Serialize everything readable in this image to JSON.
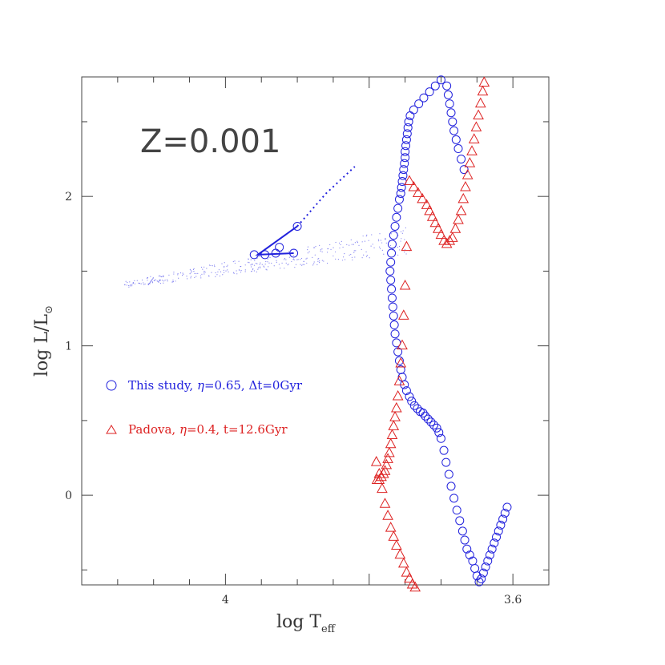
{
  "chart_data": {
    "type": "scatter",
    "title": "",
    "xlabel": "log T",
    "xlabel_sub": "eff",
    "ylabel": "log L/L",
    "ylabel_sub": "⊙",
    "xlim": [
      4.2,
      3.55
    ],
    "ylim": [
      -0.6,
      2.8
    ],
    "x_inverted": true,
    "x_ticks": [
      {
        "value": 4.0,
        "label": "4"
      },
      {
        "value": 3.6,
        "label": "3.6"
      }
    ],
    "y_ticks": [
      {
        "value": 0,
        "label": "0"
      },
      {
        "value": 1,
        "label": "1"
      },
      {
        "value": 2,
        "label": "2"
      }
    ],
    "annotation": "Z=0.001",
    "grid": false,
    "legend_placement": "left",
    "series": [
      {
        "name": "This study, η=0.65, Δt=0Gyr",
        "color": "#2222dd",
        "marker": "circle",
        "x": [
          3.668,
          3.672,
          3.676,
          3.679,
          3.682,
          3.684,
          3.686,
          3.688,
          3.69,
          3.692,
          3.7,
          3.708,
          3.716,
          3.724,
          3.731,
          3.738,
          3.743,
          3.745,
          3.746,
          3.747,
          3.748,
          3.749,
          3.75,
          3.75,
          3.751,
          3.752,
          3.753,
          3.754,
          3.755,
          3.756,
          3.758,
          3.76,
          3.762,
          3.764,
          3.766,
          3.768,
          3.769,
          3.77,
          3.771,
          3.77,
          3.769,
          3.768,
          3.767,
          3.766,
          3.765,
          3.764,
          3.762,
          3.76,
          3.758,
          3.756,
          3.754,
          3.751,
          3.748,
          3.744,
          3.741,
          3.737,
          3.733,
          3.729,
          3.725,
          3.722,
          3.718,
          3.714,
          3.71,
          3.706,
          3.703,
          3.7,
          3.696,
          3.693,
          3.689,
          3.686,
          3.682,
          3.678,
          3.674,
          3.67,
          3.667,
          3.664,
          3.66,
          3.656,
          3.653,
          3.65,
          3.647,
          3.644,
          3.641,
          3.638,
          3.635,
          3.632,
          3.629,
          3.626,
          3.623,
          3.62,
          3.617,
          3.614,
          3.611,
          3.608
        ],
        "y": [
          2.18,
          2.25,
          2.32,
          2.38,
          2.44,
          2.5,
          2.56,
          2.62,
          2.68,
          2.74,
          2.78,
          2.74,
          2.7,
          2.66,
          2.62,
          2.58,
          2.54,
          2.5,
          2.46,
          2.42,
          2.38,
          2.34,
          2.3,
          2.26,
          2.22,
          2.18,
          2.14,
          2.1,
          2.06,
          2.02,
          1.98,
          1.92,
          1.86,
          1.8,
          1.74,
          1.68,
          1.62,
          1.56,
          1.5,
          1.44,
          1.38,
          1.32,
          1.26,
          1.2,
          1.14,
          1.08,
          1.02,
          0.96,
          0.9,
          0.84,
          0.79,
          0.74,
          0.7,
          0.66,
          0.63,
          0.6,
          0.58,
          0.56,
          0.55,
          0.53,
          0.51,
          0.49,
          0.47,
          0.45,
          0.42,
          0.38,
          0.3,
          0.22,
          0.14,
          0.06,
          -0.02,
          -0.1,
          -0.17,
          -0.24,
          -0.3,
          -0.36,
          -0.4,
          -0.44,
          -0.49,
          -0.54,
          -0.58,
          -0.56,
          -0.52,
          -0.48,
          -0.44,
          -0.4,
          -0.36,
          -0.32,
          -0.28,
          -0.24,
          -0.2,
          -0.16,
          -0.12,
          -0.08
        ]
      },
      {
        "name": "Padova, η=0.4, t=12.6Gyr",
        "color": "#dd2222",
        "marker": "triangle",
        "x": [
          3.64,
          3.642,
          3.645,
          3.648,
          3.651,
          3.654,
          3.657,
          3.66,
          3.663,
          3.666,
          3.669,
          3.672,
          3.676,
          3.68,
          3.684,
          3.688,
          3.692,
          3.696,
          3.7,
          3.704,
          3.708,
          3.712,
          3.716,
          3.72,
          3.726,
          3.732,
          3.738,
          3.744,
          3.748,
          3.75,
          3.752,
          3.754,
          3.756,
          3.758,
          3.76,
          3.762,
          3.764,
          3.766,
          3.768,
          3.77,
          3.772,
          3.774,
          3.776,
          3.778,
          3.78,
          3.783,
          3.786,
          3.789,
          3.79,
          3.786,
          3.782,
          3.778,
          3.774,
          3.77,
          3.766,
          3.762,
          3.757,
          3.752,
          3.748,
          3.744,
          3.74,
          3.736
        ],
        "y": [
          2.76,
          2.7,
          2.62,
          2.54,
          2.46,
          2.38,
          2.3,
          2.22,
          2.14,
          2.06,
          1.98,
          1.9,
          1.84,
          1.78,
          1.72,
          1.7,
          1.68,
          1.7,
          1.74,
          1.78,
          1.82,
          1.86,
          1.9,
          1.94,
          1.98,
          2.02,
          2.06,
          2.1,
          1.66,
          1.4,
          1.2,
          1.0,
          0.88,
          0.76,
          0.66,
          0.58,
          0.52,
          0.46,
          0.4,
          0.34,
          0.28,
          0.24,
          0.2,
          0.16,
          0.14,
          0.12,
          0.1,
          0.1,
          0.22,
          0.14,
          0.04,
          -0.06,
          -0.14,
          -0.22,
          -0.28,
          -0.34,
          -0.4,
          -0.46,
          -0.52,
          -0.56,
          -0.6,
          -0.62
        ]
      },
      {
        "name": "",
        "color": "#2222dd",
        "marker": "circle",
        "x": [
          3.9,
          3.925,
          3.96,
          3.945,
          3.93,
          3.905
        ],
        "y": [
          1.8,
          1.66,
          1.61,
          1.61,
          1.62,
          1.62
        ]
      },
      {
        "name": "",
        "color": "#2222dd",
        "marker": "line",
        "x": [
          3.9,
          3.955,
          3.905
        ],
        "y": [
          1.8,
          1.61,
          1.62
        ]
      },
      {
        "name": "",
        "color": "#2222dd",
        "marker": "dotted-line",
        "x": [
          3.9,
          3.86,
          3.82
        ],
        "y": [
          1.8,
          2.02,
          2.2
        ]
      }
    ]
  },
  "legend": {
    "this_study": {
      "prefix": "This study, ",
      "eta": "η",
      "mid": "=0.65, ",
      "delta": "Δt=0Gyr"
    },
    "padova": {
      "prefix": "Padova, ",
      "eta": "η",
      "mid": "=0.4, ",
      "suffix": "t=12.6Gyr"
    }
  }
}
